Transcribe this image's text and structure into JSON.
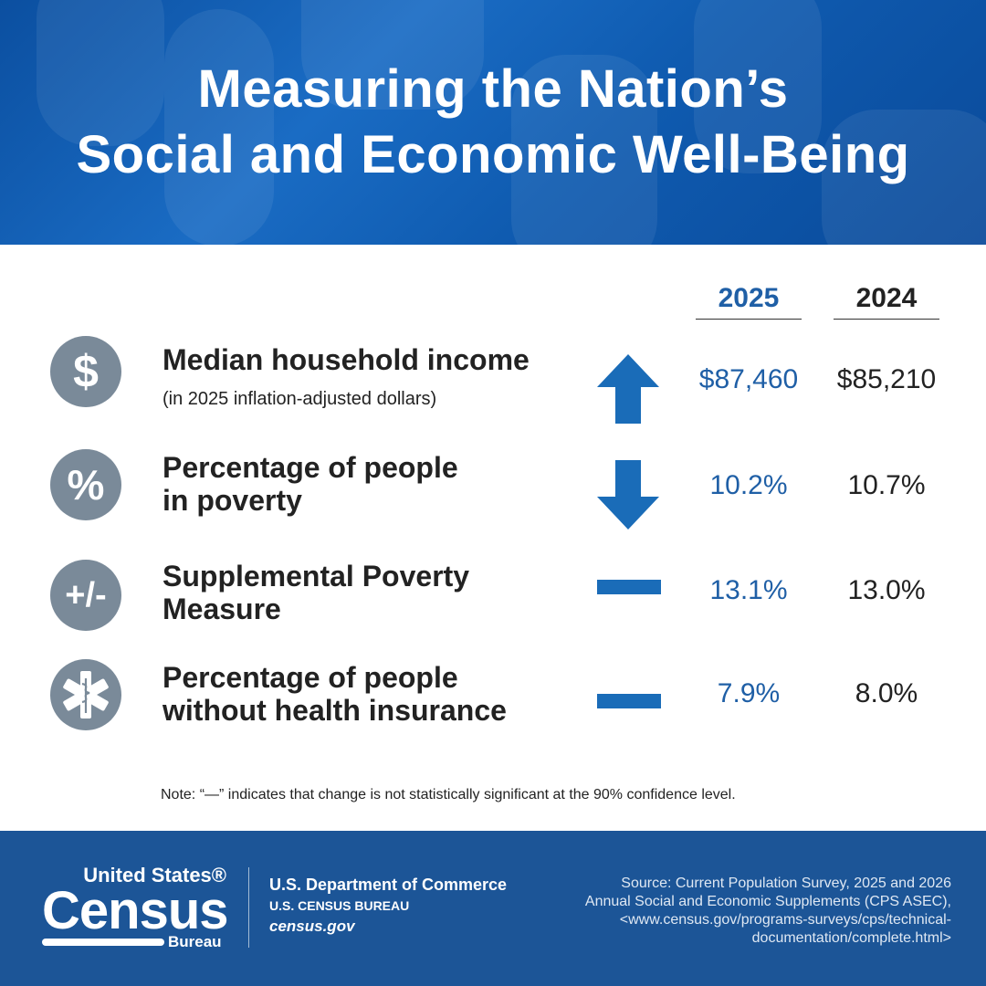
{
  "header": {
    "title_line1": "Measuring the Nation’s",
    "title_line2": "Social and Economic Well-Being"
  },
  "columns": {
    "current": "2025",
    "previous": "2024"
  },
  "rows": [
    {
      "icon": "dollar-icon",
      "icon_glyph": "$",
      "label_line1": "Median household income",
      "label_line2": "",
      "sublabel": "(in 2025 inflation-adjusted dollars)",
      "change": "up",
      "current": "$87,460",
      "previous": "$85,210"
    },
    {
      "icon": "percent-icon",
      "icon_glyph": "%",
      "label_line1": "Percentage of people",
      "label_line2": "in poverty",
      "sublabel": "",
      "change": "down",
      "current": "10.2%",
      "previous": "10.7%"
    },
    {
      "icon": "plus-minus-icon",
      "icon_glyph": "+/-",
      "label_line1": "Supplemental Poverty",
      "label_line2": "Measure",
      "sublabel": "",
      "change": "none",
      "current": "13.1%",
      "previous": "13.0%"
    },
    {
      "icon": "medical-star-icon",
      "icon_glyph": "",
      "label_line1": "Percentage of people",
      "label_line2": "without health insurance",
      "sublabel": "",
      "change": "none",
      "current": "7.9%",
      "previous": "8.0%"
    }
  ],
  "note": "Note: “—” indicates that change is not statistically significant at the 90% confidence level.",
  "footer": {
    "logo_top": "United States®",
    "logo_main": "Census",
    "logo_bottom": "Bureau",
    "dept_line1": "U.S. Department of Commerce",
    "dept_line2": "U.S. CENSUS BUREAU",
    "dept_line3": "census.gov",
    "source_line1": "Source: Current Population Survey, 2025 and 2026",
    "source_line2": "Annual Social and Economic Supplements (CPS ASEC),",
    "source_line3": "<www.census.gov/programs-surveys/cps/technical-",
    "source_line4": "documentation/complete.html>"
  },
  "colors": {
    "accent": "#1f5fa6",
    "header_bg": "#0f5bb0",
    "footer_bg": "#1c5597",
    "icon_bg": "#7a8a99",
    "arrow": "#1a6cb8"
  }
}
